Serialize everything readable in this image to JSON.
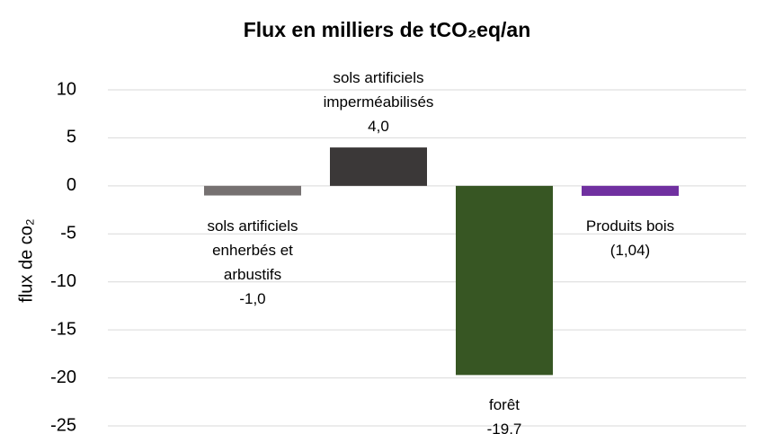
{
  "chart_data": {
    "type": "bar",
    "title": "Flux en milliers de tCO₂eq/an",
    "y_label": "flux de co₂",
    "categories": [
      "sols artificiels enherbés et arbustifs",
      "sols artificiels imperméabilisés",
      "forêt",
      "Produits bois"
    ],
    "values": [
      -1.0,
      4.0,
      -19.7,
      -1.04
    ],
    "value_labels": [
      "-1,0",
      "4,0",
      "-19,7",
      "(1,04)"
    ],
    "colors": [
      "#767171",
      "#3b3838",
      "#375623",
      "#7030a0"
    ],
    "ylim": [
      -25,
      10
    ],
    "yticks": [
      -25,
      -20,
      -15,
      -10,
      -5,
      0,
      5,
      10
    ],
    "grid": true
  }
}
